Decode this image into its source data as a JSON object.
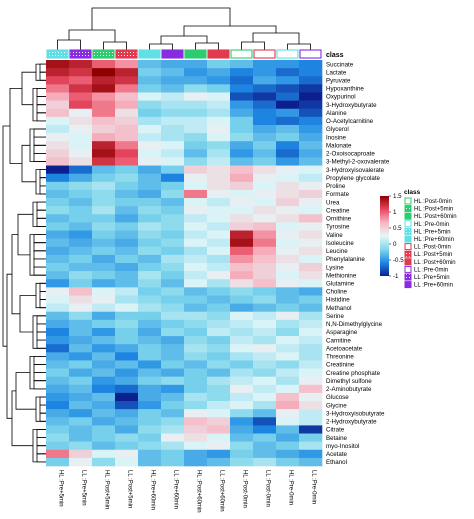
{
  "chart_data": {
    "type": "heatmap",
    "color_scale": {
      "min": -1,
      "max": 1.5,
      "ticks": [
        1.5,
        1,
        0.5,
        0,
        -0.5,
        -1
      ],
      "colors": [
        "#0b1f8f",
        "#1e88e5",
        "#7fd6ec",
        "#e6f7f8",
        "#f7b6c3",
        "#e8475f",
        "#8e0000"
      ]
    },
    "columns": [
      "HL :Pre+5min",
      "LL :Pre+5min",
      "HL :Post+5min",
      "LL :Post+5min",
      "HL :Pre+60min",
      "LL :Pre+60min",
      "HL :Post+60min",
      "LL :Post+60min",
      "HL :Post-0min",
      "LL :Post-0min",
      "HL :Pre-0min",
      "LL :Pre-0min"
    ],
    "column_classes": [
      "HL :Pre+5min",
      "LL :Pre+5min",
      "HL :Post+5min",
      "LL :Post+5min",
      "HL :Pre+60min",
      "LL :Pre+60min",
      "HL :Post+60min",
      "LL :Post+60min",
      "HL :Post-0min",
      "LL :Post-0min",
      "HL :Pre-0min",
      "LL :Pre-0min"
    ],
    "rows": [
      "Succinate",
      "Lactate",
      "Pyruvate",
      "Hypoxanthine",
      "Oxypurinol",
      "3-Hydroxybutyrate",
      "Alanine",
      "O-Acetylcarnitine",
      "Glycerol",
      "Inosine",
      "Malonate",
      "2-Oxoisocaproate",
      "3-Methyl-2-oxovalerate",
      "3-Hydroxyisovalerate",
      "Propylene glycolate",
      "Proline",
      "Formate",
      "Urea",
      "Creatine",
      "Ornithine",
      "Tyrosine",
      "Valine",
      "Isoleucine",
      "Leucine",
      "Phenylalanine",
      "Lysine",
      "Methionine",
      "Glutamine",
      "Choline",
      "Histidine",
      "Methanol",
      "Serine",
      "N,N-Dimethylglycine",
      "Asparagine",
      "Carnitine",
      "Acetoacetate",
      "Threonine",
      "Creatinine",
      "Creatine phosphate",
      "Dimethyl sulfone",
      "2-Aminobutyrate",
      "Glucose",
      "Glycine",
      "3-Hydroxyisobutyrate",
      "2-Hydroxybutyrate",
      "Citrate",
      "Betaine",
      "myo-Inositol",
      "Acetate",
      "Ethanol"
    ],
    "values": [
      [
        1.4,
        1.3,
        1.0,
        0.8,
        -0.3,
        -0.4,
        -0.4,
        -0.2,
        -0.3,
        -0.5,
        -0.5,
        -0.6
      ],
      [
        1.3,
        1.2,
        1.5,
        1.3,
        -0.2,
        -0.3,
        -0.5,
        -0.4,
        -0.6,
        -0.5,
        -0.7,
        -0.6
      ],
      [
        1.1,
        1.0,
        1.3,
        1.2,
        -0.3,
        -0.4,
        -0.4,
        -0.5,
        -0.7,
        -0.4,
        -0.5,
        -0.7
      ],
      [
        0.9,
        1.2,
        1.4,
        0.9,
        -0.2,
        -0.3,
        -0.1,
        -0.2,
        -0.6,
        -0.7,
        -0.8,
        -0.9
      ],
      [
        0.7,
        1.0,
        0.8,
        0.6,
        0.2,
        0.1,
        0.3,
        0.2,
        -0.8,
        -0.9,
        -0.7,
        -1.0
      ],
      [
        0.5,
        1.1,
        0.9,
        0.7,
        -0.1,
        0.0,
        0.0,
        0.1,
        -0.5,
        -0.7,
        -1.0,
        -0.9
      ],
      [
        0.6,
        0.3,
        0.9,
        0.4,
        -0.2,
        -0.1,
        -0.1,
        0.0,
        -0.4,
        -0.6,
        -0.5,
        -0.8
      ],
      [
        0.2,
        0.4,
        0.6,
        0.5,
        0.0,
        0.1,
        0.1,
        0.2,
        -0.2,
        -0.6,
        -0.7,
        -0.6
      ],
      [
        0.1,
        0.3,
        0.5,
        0.6,
        0.2,
        0.0,
        0.1,
        0.3,
        -0.2,
        -0.4,
        -0.3,
        -0.5
      ],
      [
        0.3,
        0.2,
        0.7,
        0.6,
        0.1,
        0.0,
        -0.1,
        0.2,
        -0.1,
        -0.3,
        -0.2,
        -0.4
      ],
      [
        0.4,
        0.2,
        1.3,
        0.9,
        0.3,
        0.2,
        -0.2,
        -0.1,
        -0.4,
        -0.2,
        -0.6,
        -0.3
      ],
      [
        0.5,
        0.3,
        1.4,
        1.1,
        0.2,
        0.1,
        -0.3,
        0.0,
        -0.5,
        -0.3,
        -0.7,
        -0.4
      ],
      [
        0.6,
        0.4,
        1.2,
        1.0,
        0.3,
        0.2,
        -0.1,
        0.1,
        -0.3,
        -0.2,
        -0.5,
        -0.3
      ],
      [
        -1.0,
        -0.7,
        -0.3,
        -0.2,
        -0.4,
        -0.2,
        0.5,
        0.4,
        0.6,
        0.4,
        0.3,
        0.2
      ],
      [
        -0.6,
        -0.4,
        -0.2,
        -0.1,
        -0.3,
        -0.6,
        0.3,
        0.4,
        0.7,
        0.3,
        0.2,
        0.1
      ],
      [
        -0.2,
        -0.1,
        0.0,
        -0.2,
        -0.3,
        -0.2,
        0.2,
        0.4,
        0.5,
        0.2,
        0.4,
        0.3
      ],
      [
        -0.3,
        -0.2,
        -0.1,
        -0.3,
        -0.4,
        -0.1,
        0.9,
        0.3,
        0.2,
        0.3,
        0.4,
        0.5
      ],
      [
        -0.2,
        -0.3,
        -0.1,
        -0.2,
        -0.2,
        -0.3,
        0.2,
        0.1,
        0.3,
        0.2,
        0.5,
        0.3
      ],
      [
        -0.1,
        -0.2,
        0.0,
        -0.3,
        -0.1,
        -0.2,
        0.3,
        0.2,
        0.2,
        0.4,
        0.3,
        0.2
      ],
      [
        -0.3,
        -0.2,
        -0.2,
        -0.4,
        -0.2,
        -0.1,
        0.1,
        0.2,
        0.4,
        0.3,
        0.4,
        0.6
      ],
      [
        -0.2,
        -0.3,
        -0.1,
        -0.2,
        0.0,
        -0.1,
        0.2,
        0.1,
        0.5,
        0.6,
        0.2,
        0.3
      ],
      [
        -0.4,
        -0.5,
        -0.2,
        -0.3,
        -0.1,
        -0.2,
        0.1,
        0.2,
        1.3,
        0.8,
        0.3,
        0.4
      ],
      [
        -0.3,
        -0.4,
        -0.3,
        -0.4,
        -0.2,
        -0.1,
        0.2,
        0.1,
        1.4,
        0.9,
        0.2,
        0.3
      ],
      [
        -0.4,
        -0.3,
        -0.2,
        -0.3,
        -0.1,
        -0.2,
        0.0,
        0.2,
        1.0,
        0.7,
        0.3,
        0.4
      ],
      [
        -0.3,
        -0.2,
        -0.4,
        -0.2,
        -0.3,
        0.0,
        0.1,
        0.0,
        0.8,
        0.6,
        0.4,
        0.2
      ],
      [
        -0.2,
        -0.3,
        -0.3,
        -0.4,
        -0.2,
        -0.1,
        0.2,
        0.1,
        0.6,
        0.5,
        0.3,
        0.5
      ],
      [
        -0.3,
        -0.1,
        -0.2,
        -0.3,
        0.0,
        -0.2,
        0.1,
        0.3,
        0.7,
        0.5,
        0.2,
        0.4
      ],
      [
        -0.5,
        -0.2,
        -0.4,
        -0.3,
        -0.1,
        -0.3,
        0.2,
        0.0,
        0.4,
        0.6,
        0.3,
        0.2
      ],
      [
        0.3,
        0.6,
        0.2,
        0.1,
        -0.2,
        -0.1,
        -0.3,
        -0.2,
        -0.1,
        -0.2,
        -0.3,
        -0.4
      ],
      [
        0.2,
        0.4,
        0.3,
        0.0,
        -0.1,
        -0.2,
        -0.2,
        -0.3,
        -0.2,
        -0.1,
        -0.3,
        -0.2
      ],
      [
        0.1,
        0.3,
        0.1,
        0.2,
        0.0,
        -0.1,
        -0.3,
        -0.2,
        -0.4,
        -0.3,
        -0.2,
        -0.3
      ],
      [
        -0.3,
        -0.1,
        -0.4,
        -0.2,
        -0.2,
        0.0,
        0.0,
        -0.1,
        0.2,
        0.1,
        0.3,
        0.0
      ],
      [
        -0.4,
        -0.3,
        -0.2,
        -0.1,
        -0.3,
        -0.2,
        -0.1,
        0.0,
        0.1,
        0.2,
        0.0,
        0.1
      ],
      [
        -0.6,
        -0.3,
        -0.5,
        -0.2,
        -0.4,
        -0.1,
        -0.2,
        0.1,
        0.0,
        0.1,
        -0.1,
        0.2
      ],
      [
        -0.5,
        -0.4,
        -0.3,
        -0.2,
        -0.3,
        -0.4,
        -0.1,
        -0.2,
        0.1,
        0.0,
        0.2,
        0.1
      ],
      [
        -0.7,
        -0.3,
        -0.5,
        -0.4,
        -0.2,
        -0.3,
        0.0,
        -0.1,
        0.2,
        0.3,
        0.1,
        0.0
      ],
      [
        -0.4,
        -0.5,
        -0.3,
        -0.6,
        -0.2,
        -0.3,
        -0.1,
        -0.2,
        0.0,
        0.1,
        0.2,
        0.0
      ],
      [
        -0.3,
        -0.2,
        -0.4,
        -0.3,
        -0.5,
        -0.2,
        -0.3,
        -0.1,
        -0.2,
        0.0,
        -0.1,
        0.1
      ],
      [
        -0.2,
        -0.4,
        -0.3,
        -0.5,
        -0.3,
        -0.4,
        -0.2,
        -0.3,
        0.0,
        -0.1,
        0.1,
        0.2
      ],
      [
        -0.3,
        -0.2,
        -0.5,
        -0.4,
        -0.2,
        -0.1,
        -0.2,
        0.0,
        0.1,
        0.2,
        0.0,
        0.3
      ],
      [
        -0.4,
        -0.3,
        -0.6,
        -0.7,
        -0.4,
        -0.5,
        -0.2,
        -0.1,
        0.3,
        0.1,
        0.2,
        0.6
      ],
      [
        -0.5,
        -0.4,
        -0.3,
        -1.0,
        -0.4,
        -0.3,
        0.0,
        -0.1,
        0.1,
        0.2,
        0.6,
        0.3
      ],
      [
        -0.6,
        -0.3,
        -0.4,
        -0.8,
        -0.5,
        -0.2,
        -0.1,
        0.1,
        0.2,
        0.0,
        0.7,
        0.4
      ],
      [
        -0.4,
        -0.5,
        -0.3,
        -0.4,
        -0.2,
        -0.3,
        0.3,
        0.2,
        -0.1,
        -0.3,
        0.3,
        0.1
      ],
      [
        -0.3,
        -0.2,
        -0.4,
        -0.3,
        -0.2,
        -0.1,
        0.6,
        0.5,
        -0.5,
        -0.8,
        0.2,
        0.1
      ],
      [
        -0.2,
        -0.3,
        -0.2,
        -0.4,
        -0.1,
        0.0,
        0.5,
        0.6,
        -0.4,
        -0.6,
        -0.3,
        -0.9
      ],
      [
        -0.1,
        -0.3,
        -0.2,
        -0.1,
        -0.2,
        0.3,
        0.4,
        0.2,
        -0.3,
        -0.2,
        -0.4,
        -0.2
      ],
      [
        -0.2,
        -0.1,
        -0.3,
        -0.2,
        -0.1,
        0.0,
        0.2,
        0.3,
        -0.1,
        -0.3,
        -0.2,
        0.0
      ],
      [
        0.9,
        0.5,
        0.2,
        0.3,
        -0.3,
        -0.2,
        -0.4,
        -0.5,
        -0.2,
        -0.3,
        -0.4,
        -0.5
      ],
      [
        -0.2,
        0.3,
        -0.1,
        0.2,
        -0.3,
        -0.2,
        -0.4,
        -0.3,
        -0.1,
        0.0,
        -0.2,
        -0.3
      ]
    ],
    "class_label": "class",
    "legend_title": "class",
    "legend_entries": [
      {
        "label": "HL :Post-0min",
        "color": "#2ecc71",
        "pattern": "plain"
      },
      {
        "label": "HL :Post+5min",
        "color": "#2ecc71",
        "pattern": "grid"
      },
      {
        "label": "HL :Post+60min",
        "color": "#2ecc71",
        "pattern": "solid"
      },
      {
        "label": "HL :Pre-0min",
        "color": "#5ee0e6",
        "pattern": "plain"
      },
      {
        "label": "HL :Pre+5min",
        "color": "#5ee0e6",
        "pattern": "grid"
      },
      {
        "label": "HL :Pre+60min",
        "color": "#5ee0e6",
        "pattern": "solid"
      },
      {
        "label": "LL :Post-0min",
        "color": "#e23a4f",
        "pattern": "plain"
      },
      {
        "label": "LL :Post+5min",
        "color": "#e23a4f",
        "pattern": "grid"
      },
      {
        "label": "LL :Post+60min",
        "color": "#e23a4f",
        "pattern": "solid"
      },
      {
        "label": "LL :Pre-0min",
        "color": "#8a2be2",
        "pattern": "plain"
      },
      {
        "label": "LL :Pre+5min",
        "color": "#8a2be2",
        "pattern": "grid"
      },
      {
        "label": "LL :Pre+60min",
        "color": "#8a2be2",
        "pattern": "solid"
      }
    ]
  }
}
